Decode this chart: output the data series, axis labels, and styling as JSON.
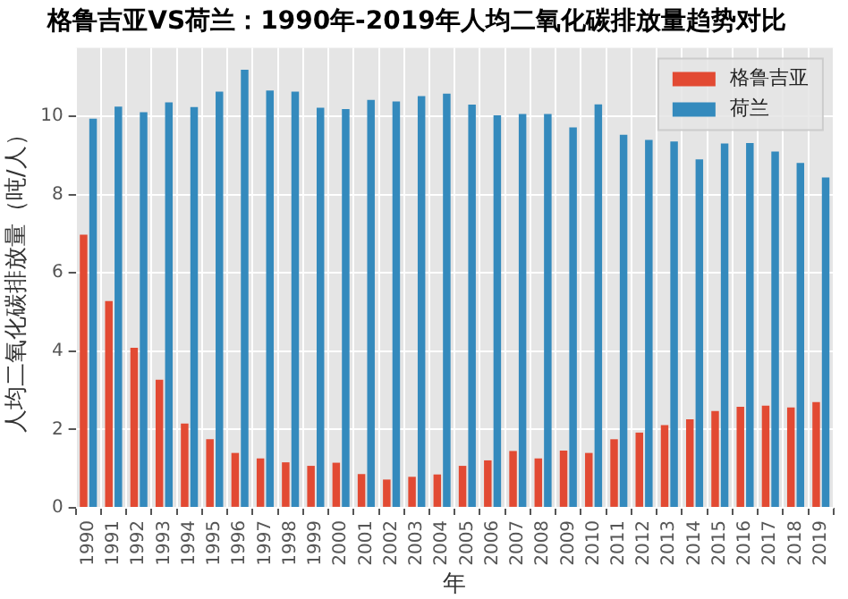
{
  "chart_data": {
    "type": "bar",
    "title": "格鲁吉亚VS荷兰：1990年-2019年人均二氧化碳排放量趋势对比",
    "xlabel": "年",
    "ylabel": "人均二氧化碳排放量（吨/人）",
    "categories": [
      "1990",
      "1991",
      "1992",
      "1993",
      "1994",
      "1995",
      "1996",
      "1997",
      "1998",
      "1999",
      "2000",
      "2001",
      "2002",
      "2003",
      "2004",
      "2005",
      "2006",
      "2007",
      "2008",
      "2009",
      "2010",
      "2011",
      "2012",
      "2013",
      "2014",
      "2015",
      "2016",
      "2017",
      "2018",
      "2019"
    ],
    "series": [
      {
        "name": "格鲁吉亚",
        "color": "#e24a33",
        "values": [
          6.98,
          5.28,
          4.09,
          3.27,
          2.15,
          1.75,
          1.4,
          1.26,
          1.16,
          1.07,
          1.15,
          0.86,
          0.72,
          0.79,
          0.85,
          1.07,
          1.21,
          1.45,
          1.26,
          1.46,
          1.4,
          1.75,
          1.92,
          2.11,
          2.26,
          2.47,
          2.58,
          2.61,
          2.56,
          2.7
        ]
      },
      {
        "name": "荷兰",
        "color": "#348abd",
        "values": [
          9.94,
          10.25,
          10.11,
          10.36,
          10.24,
          10.63,
          11.19,
          10.66,
          10.63,
          10.22,
          10.19,
          10.42,
          10.38,
          10.52,
          10.58,
          10.3,
          10.03,
          10.06,
          10.06,
          9.72,
          10.31,
          9.53,
          9.4,
          9.36,
          8.9,
          9.31,
          9.32,
          9.1,
          8.81,
          8.44
        ]
      }
    ],
    "ylim": [
      0,
      11.75
    ],
    "yticks": [
      0,
      2,
      4,
      6,
      8,
      10
    ],
    "grid": true,
    "legend": "top right"
  }
}
